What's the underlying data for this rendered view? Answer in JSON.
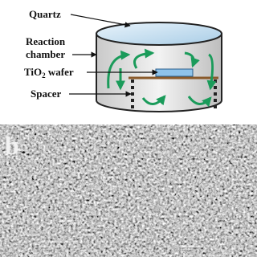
{
  "labels": {
    "quartz": "Quartz",
    "reaction_chamber": [
      "Reaction",
      "chamber"
    ],
    "tio2_wafer": {
      "base": "TiO",
      "subscript": "2",
      "rest": " wafer"
    },
    "spacer": "Spacer"
  },
  "panel_label": "b"
}
